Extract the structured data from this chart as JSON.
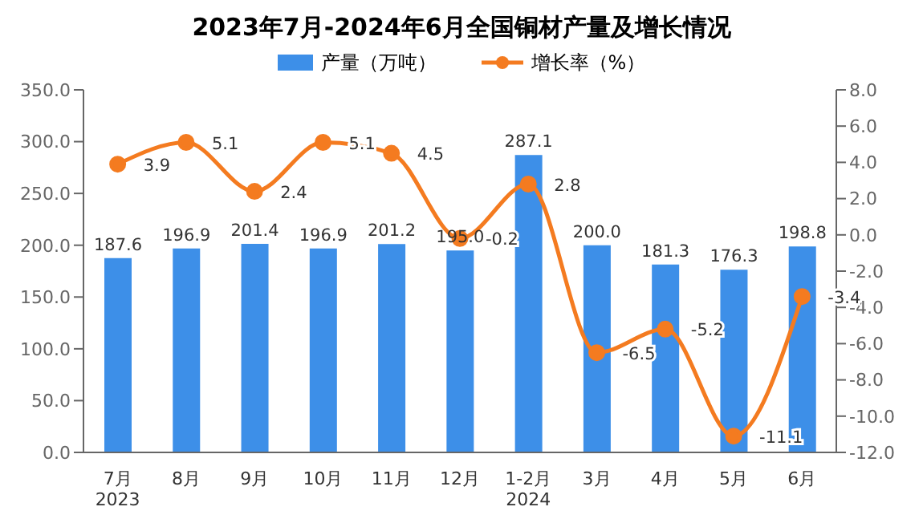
{
  "chart_data": {
    "type": "bar",
    "title": "2023年7月-2024年6月全国铜材产量及增长情况",
    "categories": [
      "7月\n2023",
      "8月",
      "9月",
      "10月",
      "11月",
      "12月",
      "1-2月\n2024",
      "3月",
      "4月",
      "5月",
      "6月"
    ],
    "series": [
      {
        "name": "产量（万吨）",
        "color": "#3d8fe8",
        "values": [
          187.6,
          196.9,
          201.4,
          196.9,
          201.2,
          195.0,
          287.1,
          200.0,
          181.3,
          176.3,
          198.8
        ],
        "value_labels": [
          "187.6",
          "196.9",
          "201.4",
          "196.9",
          "201.2",
          "195.0",
          "287.1",
          "200.0",
          "181.3",
          "176.3",
          "198.8"
        ]
      },
      {
        "name": "增长率（%）",
        "type": "line",
        "axis": "y2",
        "color": "#f47b20",
        "values": [
          3.9,
          5.1,
          2.4,
          5.1,
          4.5,
          -0.2,
          2.8,
          -6.5,
          -5.2,
          -11.1,
          -3.4
        ]
      }
    ],
    "ylim": [
      0,
      350
    ],
    "yticks": [
      {
        "value": 0,
        "label": "0.0"
      },
      {
        "value": 50,
        "label": "50.0"
      },
      {
        "value": 100,
        "label": "100.0"
      },
      {
        "value": 150,
        "label": "150.0"
      },
      {
        "value": 200,
        "label": "200.0"
      },
      {
        "value": 250,
        "label": "250.0"
      },
      {
        "value": 300,
        "label": "300.0"
      },
      {
        "value": 350,
        "label": "350.0"
      }
    ],
    "y2lim": [
      -12,
      8
    ],
    "y2ticks": [
      {
        "value": -12,
        "label": "-12.0"
      },
      {
        "value": -10,
        "label": "-10.0"
      },
      {
        "value": -8,
        "label": "-8.0"
      },
      {
        "value": -6,
        "label": "-6.0"
      },
      {
        "value": -4,
        "label": "-4.0"
      },
      {
        "value": -2,
        "label": "-2.0"
      },
      {
        "value": 0,
        "label": "0.0"
      },
      {
        "value": 2,
        "label": "2.0"
      },
      {
        "value": 4,
        "label": "4.0"
      },
      {
        "value": 6,
        "label": "6.0"
      },
      {
        "value": 8,
        "label": "8.0"
      }
    ],
    "data_labels": true,
    "legend": "top",
    "grid": false,
    "marker": "circle"
  }
}
